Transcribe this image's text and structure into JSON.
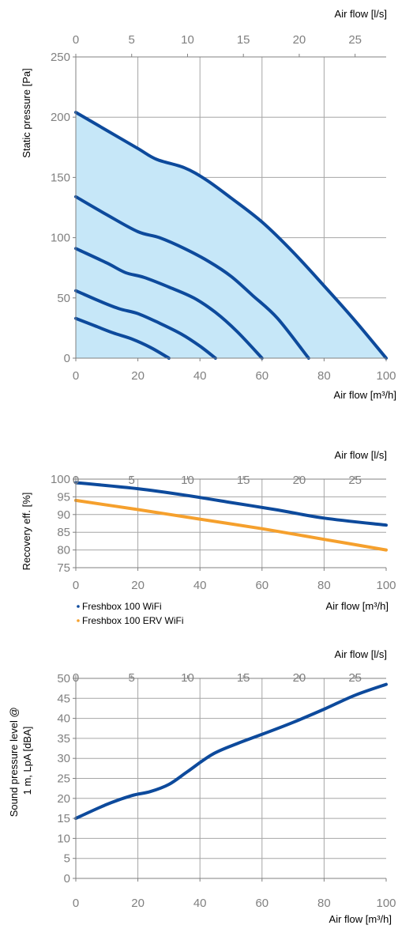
{
  "chart_data": [
    {
      "type": "line",
      "title": "",
      "xlabel": "Air flow [m³/h]",
      "x2label": "Air flow [l/s]",
      "ylabel": "Static pressure [Pa]",
      "xlim": [
        0,
        100
      ],
      "x2lim": [
        0,
        27.78
      ],
      "ylim": [
        0,
        250
      ],
      "xticks": [
        "0",
        "20",
        "40",
        "60",
        "80",
        "100"
      ],
      "x2ticks": [
        "0",
        "5",
        "10",
        "15",
        "20",
        "25"
      ],
      "yticks": [
        "0",
        "50",
        "100",
        "150",
        "200",
        "250"
      ],
      "grid": true,
      "colors": {
        "line": "#0d4a9c",
        "fill": "#c6e7f8"
      },
      "series": [
        {
          "values": [
            [
              0,
              204
            ],
            [
              10,
              189
            ],
            [
              20,
              174
            ],
            [
              26,
              165
            ],
            [
              35,
              158
            ],
            [
              42,
              148
            ],
            [
              50,
              133
            ],
            [
              60,
              113
            ],
            [
              70,
              88
            ],
            [
              80,
              60
            ],
            [
              90,
              31
            ],
            [
              100,
              0
            ]
          ]
        },
        {
          "values": [
            [
              0,
              134
            ],
            [
              10,
              119
            ],
            [
              20,
              105
            ],
            [
              27,
              100
            ],
            [
              35,
              91
            ],
            [
              43,
              80
            ],
            [
              50,
              68
            ],
            [
              57,
              52
            ],
            [
              65,
              33
            ],
            [
              75,
              0
            ]
          ]
        },
        {
          "values": [
            [
              0,
              91
            ],
            [
              10,
              79
            ],
            [
              16,
              71
            ],
            [
              22,
              67
            ],
            [
              30,
              59
            ],
            [
              38,
              50
            ],
            [
              45,
              38
            ],
            [
              52,
              22
            ],
            [
              60,
              0
            ]
          ]
        },
        {
          "values": [
            [
              0,
              56
            ],
            [
              8,
              47
            ],
            [
              14,
              41
            ],
            [
              20,
              37
            ],
            [
              27,
              29
            ],
            [
              34,
              20
            ],
            [
              40,
              10
            ],
            [
              45,
              0
            ]
          ]
        },
        {
          "values": [
            [
              0,
              33
            ],
            [
              6,
              27
            ],
            [
              12,
              21
            ],
            [
              18,
              16
            ],
            [
              24,
              9
            ],
            [
              30,
              0
            ]
          ]
        }
      ]
    },
    {
      "type": "line",
      "title": "",
      "xlabel": "Air flow [m³/h]",
      "x2label": "Air flow [l/s]",
      "ylabel": "Recovery eff. [%]",
      "xlim": [
        0,
        100
      ],
      "x2lim": [
        0,
        27.78
      ],
      "ylim": [
        75,
        100
      ],
      "xticks": [
        "0",
        "20",
        "40",
        "60",
        "80",
        "100"
      ],
      "x2ticks": [
        "0",
        "5",
        "10",
        "15",
        "20",
        "25"
      ],
      "yticks": [
        "75",
        "80",
        "85",
        "90",
        "95",
        "100"
      ],
      "grid": true,
      "legend": "bottom-left",
      "series": [
        {
          "name": "Freshbox 100 WiFi",
          "color": "#0d4a9c",
          "values": [
            [
              0,
              99
            ],
            [
              20,
              97.3
            ],
            [
              35,
              95.5
            ],
            [
              50,
              93.4
            ],
            [
              65,
              91.3
            ],
            [
              80,
              89
            ],
            [
              100,
              87
            ]
          ]
        },
        {
          "name": "Freshbox 100 ERV WiFi",
          "color": "#f5a02d",
          "values": [
            [
              0,
              94
            ],
            [
              20,
              91.4
            ],
            [
              40,
              88.7
            ],
            [
              60,
              86
            ],
            [
              80,
              83
            ],
            [
              100,
              80
            ]
          ]
        }
      ]
    },
    {
      "type": "line",
      "title": "",
      "xlabel": "Air flow [m³/h]",
      "x2label": "Air flow [l/s]",
      "ylabel": "Sound pressure level @ 1 m, LpA [dBA]",
      "ylabel_lines": [
        "Sound pressure level @",
        "1 m, LpA [dBA]"
      ],
      "xlim": [
        0,
        100
      ],
      "x2lim": [
        0,
        27.78
      ],
      "ylim": [
        0,
        50
      ],
      "xticks": [
        "0",
        "20",
        "40",
        "60",
        "80",
        "100"
      ],
      "x2ticks": [
        "0",
        "5",
        "10",
        "15",
        "20",
        "25"
      ],
      "yticks": [
        "0",
        "5",
        "10",
        "15",
        "20",
        "25",
        "30",
        "35",
        "40",
        "45",
        "50"
      ],
      "grid": true,
      "series": [
        {
          "color": "#0d4a9c",
          "values": [
            [
              0,
              15
            ],
            [
              10,
              18.5
            ],
            [
              18,
              20.7
            ],
            [
              24,
              21.7
            ],
            [
              30,
              23.5
            ],
            [
              36,
              26.7
            ],
            [
              44,
              31
            ],
            [
              52,
              33.7
            ],
            [
              60,
              36
            ],
            [
              70,
              39
            ],
            [
              80,
              42.3
            ],
            [
              90,
              45.8
            ],
            [
              100,
              48.5
            ]
          ]
        }
      ]
    }
  ]
}
